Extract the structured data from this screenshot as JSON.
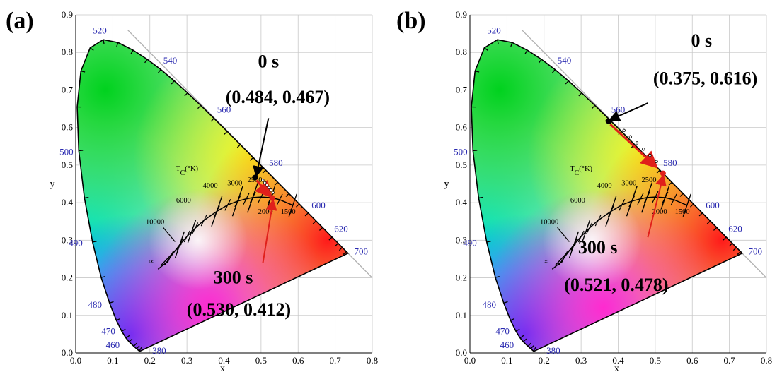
{
  "chart_data": [
    {
      "type": "scatter",
      "panel_label": "(a)",
      "xlabel": "x",
      "ylabel": "y",
      "xlim": [
        0.0,
        0.8
      ],
      "ylim": [
        0.0,
        0.9
      ],
      "xticks": [
        "0.0",
        "0.1",
        "0.2",
        "0.3",
        "0.4",
        "0.5",
        "0.6",
        "0.7",
        "0.8"
      ],
      "yticks": [
        "0.0",
        "0.1",
        "0.2",
        "0.3",
        "0.4",
        "0.5",
        "0.6",
        "0.7",
        "0.8",
        "0.9"
      ],
      "wavelength_labels": [
        "380",
        "460",
        "470",
        "480",
        "490",
        "500",
        "520",
        "540",
        "560",
        "580",
        "600",
        "620",
        "700"
      ],
      "cct_title": "T_C(°K)",
      "cct_labels": [
        "10000",
        "6000",
        "4000",
        "3000",
        "2500",
        "2000",
        "1500",
        "∞"
      ],
      "points": [
        {
          "name": "0 s",
          "coord_text": "(0.484, 0.467)",
          "x": 0.484,
          "y": 0.467,
          "color": "#000000"
        },
        {
          "name": "300 s",
          "coord_text": "(0.530, 0.412)",
          "x": 0.53,
          "y": 0.412,
          "color": "#e0201b"
        }
      ],
      "annotations": [
        "0 s",
        "(0.484, 0.467)",
        "300 s",
        "(0.530, 0.412)"
      ]
    },
    {
      "type": "scatter",
      "panel_label": "(b)",
      "xlabel": "x",
      "ylabel": "y",
      "xlim": [
        0.0,
        0.8
      ],
      "ylim": [
        0.0,
        0.9
      ],
      "xticks": [
        "0.0",
        "0.1",
        "0.2",
        "0.3",
        "0.4",
        "0.5",
        "0.6",
        "0.7",
        "0.8"
      ],
      "yticks": [
        "0.0",
        "0.1",
        "0.2",
        "0.3",
        "0.4",
        "0.5",
        "0.6",
        "0.7",
        "0.8",
        "0.9"
      ],
      "wavelength_labels": [
        "380",
        "460",
        "470",
        "480",
        "490",
        "500",
        "520",
        "540",
        "560",
        "580",
        "600",
        "620",
        "700"
      ],
      "cct_title": "T_C(°K)",
      "cct_labels": [
        "10000",
        "6000",
        "4000",
        "3000",
        "2500",
        "2000",
        "1500",
        "∞"
      ],
      "points": [
        {
          "name": "0 s",
          "coord_text": "(0.375, 0.616)",
          "x": 0.375,
          "y": 0.616,
          "color": "#000000"
        },
        {
          "name": "300 s",
          "coord_text": "(0.521, 0.478)",
          "x": 0.521,
          "y": 0.478,
          "color": "#e0201b"
        }
      ],
      "annotations": [
        "0 s",
        "(0.375, 0.616)",
        "300 s",
        "(0.521, 0.478)"
      ]
    }
  ],
  "colors": {
    "arrow": "#e0201b",
    "wavelength_label": "#2a2ab0",
    "grid": "#c8c8c8"
  }
}
